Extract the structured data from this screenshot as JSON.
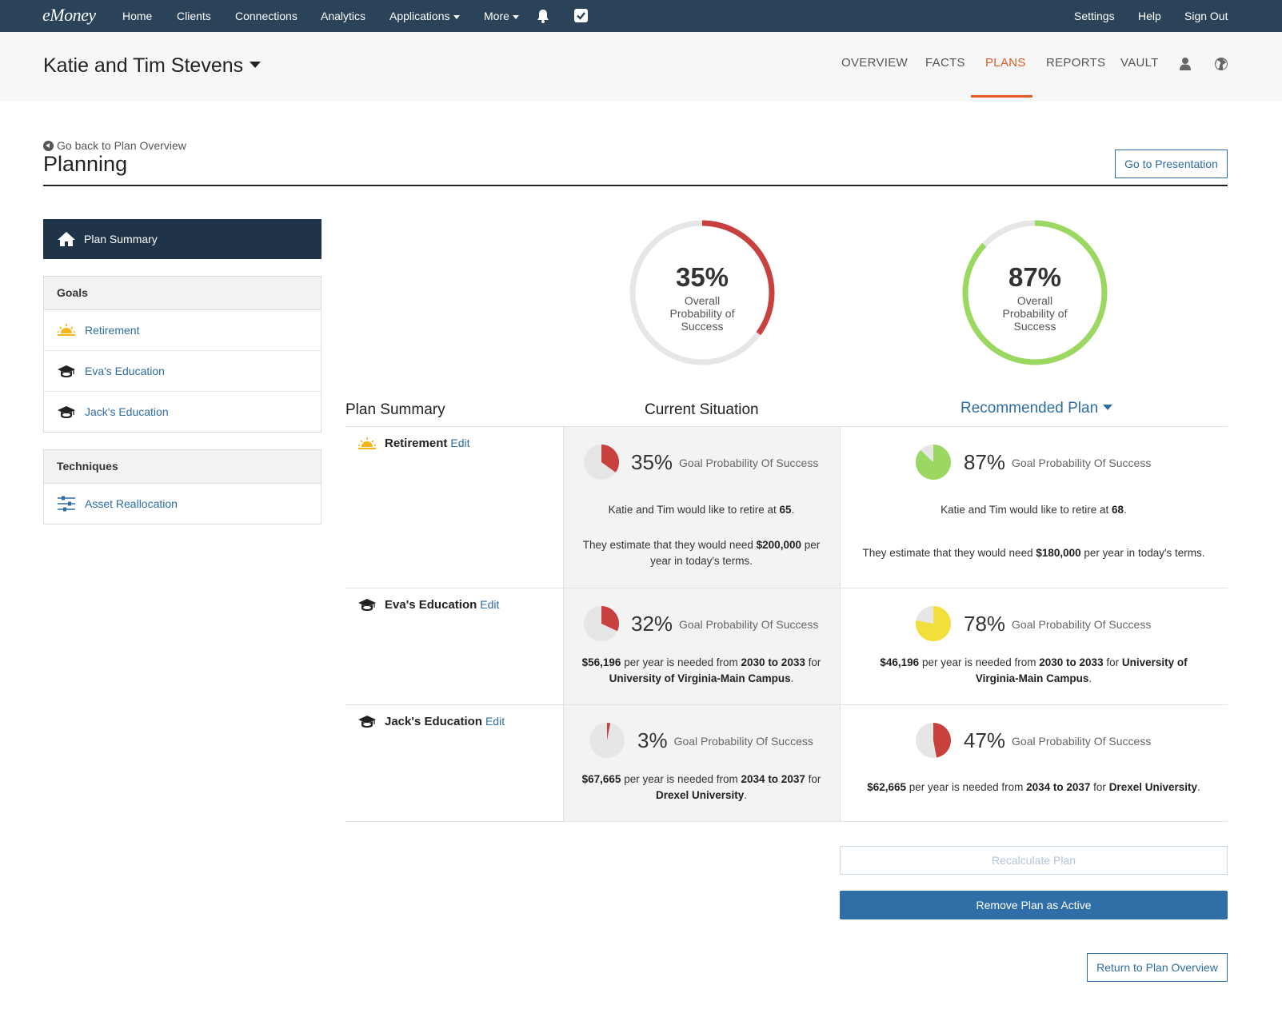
{
  "topnav": {
    "logo": "eMoney",
    "items": [
      "Home",
      "Clients",
      "Connections",
      "Analytics",
      "Applications",
      "More"
    ],
    "right": [
      "Settings",
      "Help",
      "Sign Out"
    ]
  },
  "client": {
    "name": "Katie and Tim Stevens",
    "tabs": [
      "OVERVIEW",
      "FACTS",
      "PLANS",
      "REPORTS",
      "VAULT"
    ],
    "active_tab": "PLANS"
  },
  "page": {
    "back_link": "Go back to Plan Overview",
    "title": "Planning",
    "presentation_button": "Go to Presentation"
  },
  "sidebar": {
    "plan_summary": "Plan Summary",
    "goals_header": "Goals",
    "goals": [
      {
        "label": "Retirement",
        "icon": "sunrise-icon"
      },
      {
        "label": "Eva's Education",
        "icon": "graduation-cap-icon"
      },
      {
        "label": "Jack's Education",
        "icon": "graduation-cap-icon"
      }
    ],
    "techniques_header": "Techniques",
    "techniques": [
      {
        "label": "Asset Reallocation",
        "icon": "sliders-icon"
      }
    ]
  },
  "overall": {
    "current": {
      "percent": "35%",
      "value": 35,
      "label": "Overall Probability of Success",
      "color": "#c9413e"
    },
    "recommended": {
      "percent": "87%",
      "value": 87,
      "label": "Overall Probability of Success",
      "color": "#9bd862"
    }
  },
  "table": {
    "headers": {
      "summary": "Plan Summary",
      "current": "Current Situation",
      "recommended": "Recommended Plan"
    },
    "edit_label": "Edit",
    "gps_label": "Goal Probability Of Success",
    "rows": [
      {
        "goal": "Retirement",
        "current": {
          "percent": "35%",
          "value": 35,
          "color": "#c9413e"
        },
        "recommended": {
          "percent": "87%",
          "value": 87,
          "color": "#9bd862"
        }
      },
      {
        "goal": "Eva's Education",
        "current": {
          "percent": "32%",
          "value": 32,
          "color": "#c9413e"
        },
        "recommended": {
          "percent": "78%",
          "value": 78,
          "color": "#f3df3b"
        }
      },
      {
        "goal": "Jack's Education",
        "current": {
          "percent": "3%",
          "value": 3,
          "color": "#c9413e"
        },
        "recommended": {
          "percent": "47%",
          "value": 47,
          "color": "#c9413e"
        }
      }
    ],
    "text": {
      "ret_cur_1a": "Katie and Tim would like to retire at ",
      "ret_cur_1b": "65",
      "ret_cur_1c": ".",
      "ret_cur_2a": "They estimate that they would need ",
      "ret_cur_2b": "$200,000",
      "ret_cur_2c": " per year in today's terms.",
      "ret_rec_1a": "Katie and Tim would like to retire at ",
      "ret_rec_1b": "68",
      "ret_rec_1c": ".",
      "ret_rec_2a": "They estimate that they would need ",
      "ret_rec_2b": "$180,000",
      "ret_rec_2c": " per year in today's terms.",
      "eva_cur_a": "$56,196",
      "eva_cur_b": " per year is needed from ",
      "eva_cur_c": "2030 to 2033",
      "eva_cur_d": " for ",
      "eva_cur_e": "University of Virginia-Main Campus",
      "eva_cur_f": ".",
      "eva_rec_a": "$46,196",
      "eva_rec_b": " per year is needed from ",
      "eva_rec_c": "2030 to 2033",
      "eva_rec_d": " for ",
      "eva_rec_e": "University of Virginia-Main Campus",
      "eva_rec_f": ".",
      "jack_cur_a": "$67,665",
      "jack_cur_b": " per year is needed from ",
      "jack_cur_c": "2034 to 2037",
      "jack_cur_d": " for ",
      "jack_cur_e": "Drexel University",
      "jack_cur_f": ".",
      "jack_rec_a": "$62,665",
      "jack_rec_b": " per year is needed from ",
      "jack_rec_c": "2034 to 2037",
      "jack_rec_d": " for ",
      "jack_rec_e": "Drexel University",
      "jack_rec_f": "."
    }
  },
  "actions": {
    "recalculate": "Recalculate Plan",
    "remove_active": "Remove Plan as Active",
    "return_overview": "Return to Plan Overview"
  }
}
